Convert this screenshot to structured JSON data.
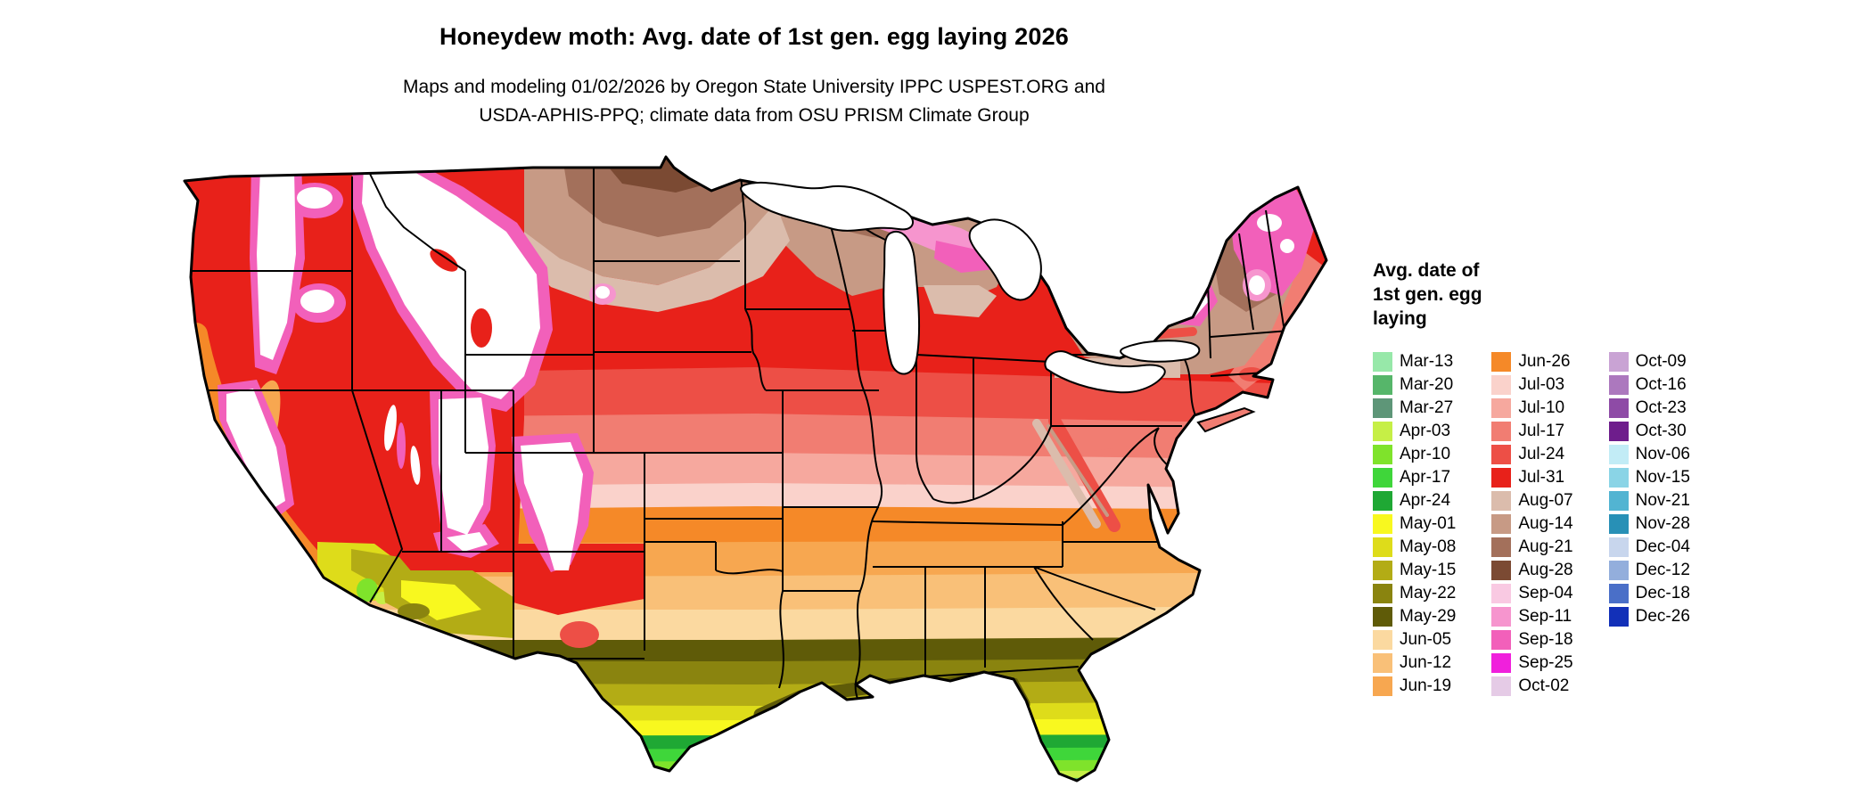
{
  "title": "Honeydew moth: Avg. date of 1st gen. egg laying 2026",
  "subtitle_lines": [
    "Maps and modeling 01/02/2026 by Oregon State University IPPC USPEST.ORG and",
    "USDA-APHIS-PPQ; climate data from OSU PRISM Climate Group"
  ],
  "legend": {
    "title_lines": [
      "Avg. date of",
      "1st gen. egg",
      "laying"
    ],
    "columns": [
      [
        {
          "key": "mar13",
          "label": "Mar-13",
          "color": "#97E8A9"
        },
        {
          "key": "mar20",
          "label": "Mar-20",
          "color": "#56B66A"
        },
        {
          "key": "mar27",
          "label": "Mar-27",
          "color": "#5E9678"
        },
        {
          "key": "apr03",
          "label": "Apr-03",
          "color": "#C6EF46"
        },
        {
          "key": "apr10",
          "label": "Apr-10",
          "color": "#7FE32B"
        },
        {
          "key": "apr17",
          "label": "Apr-17",
          "color": "#3FD63A"
        },
        {
          "key": "apr24",
          "label": "Apr-24",
          "color": "#1FA834"
        },
        {
          "key": "may01",
          "label": "May-01",
          "color": "#F8F81F"
        },
        {
          "key": "may08",
          "label": "May-08",
          "color": "#DEDC1A"
        },
        {
          "key": "may15",
          "label": "May-15",
          "color": "#B3AC15"
        },
        {
          "key": "may22",
          "label": "May-22",
          "color": "#8A840F"
        },
        {
          "key": "may29",
          "label": "May-29",
          "color": "#5F5B08"
        },
        {
          "key": "jun05",
          "label": "Jun-05",
          "color": "#FBD9A0"
        },
        {
          "key": "jun12",
          "label": "Jun-12",
          "color": "#F9C078"
        },
        {
          "key": "jun19",
          "label": "Jun-19",
          "color": "#F7A750"
        }
      ],
      [
        {
          "key": "jun26",
          "label": "Jun-26",
          "color": "#F58928"
        },
        {
          "key": "jul03",
          "label": "Jul-03",
          "color": "#FAD2CB"
        },
        {
          "key": "jul10",
          "label": "Jul-10",
          "color": "#F6A89E"
        },
        {
          "key": "jul17",
          "label": "Jul-17",
          "color": "#F17D72"
        },
        {
          "key": "jul24",
          "label": "Jul-24",
          "color": "#ED4F46"
        },
        {
          "key": "jul31",
          "label": "Jul-31",
          "color": "#E8211A"
        },
        {
          "key": "aug07",
          "label": "Aug-07",
          "color": "#DBBCAC"
        },
        {
          "key": "aug14",
          "label": "Aug-14",
          "color": "#C79A85"
        },
        {
          "key": "aug21",
          "label": "Aug-21",
          "color": "#A3705B"
        },
        {
          "key": "aug28",
          "label": "Aug-28",
          "color": "#7B4A33"
        },
        {
          "key": "sep04",
          "label": "Sep-04",
          "color": "#F9C9E2"
        },
        {
          "key": "sep11",
          "label": "Sep-11",
          "color": "#F695CE"
        },
        {
          "key": "sep18",
          "label": "Sep-18",
          "color": "#F260BA"
        },
        {
          "key": "sep25",
          "label": "Sep-25",
          "color": "#F020DC"
        },
        {
          "key": "oct02",
          "label": "Oct-02",
          "color": "#E5CBE6"
        }
      ],
      [
        {
          "key": "oct09",
          "label": "Oct-09",
          "color": "#C9A3D4"
        },
        {
          "key": "oct16",
          "label": "Oct-16",
          "color": "#AC78BE"
        },
        {
          "key": "oct23",
          "label": "Oct-23",
          "color": "#8E4BA6"
        },
        {
          "key": "oct30",
          "label": "Oct-30",
          "color": "#6E1D8C"
        },
        {
          "key": "nov06",
          "label": "Nov-06",
          "color": "#C2ECF6"
        },
        {
          "key": "nov15",
          "label": "Nov-15",
          "color": "#8AD4E6"
        },
        {
          "key": "nov21",
          "label": "Nov-21",
          "color": "#52B4D2"
        },
        {
          "key": "nov28",
          "label": "Nov-28",
          "color": "#2890B6"
        },
        {
          "key": "dec04",
          "label": "Dec-04",
          "color": "#C8D6ED"
        },
        {
          "key": "dec12",
          "label": "Dec-12",
          "color": "#93AEDC"
        },
        {
          "key": "dec18",
          "label": "Dec-18",
          "color": "#4A6FC8"
        },
        {
          "key": "dec26",
          "label": "Dec-26",
          "color": "#1230B8"
        }
      ]
    ]
  },
  "map": {
    "region": "Continental United States",
    "no_data_fill": "#FFFFFF",
    "boundary_color": "#000000"
  }
}
